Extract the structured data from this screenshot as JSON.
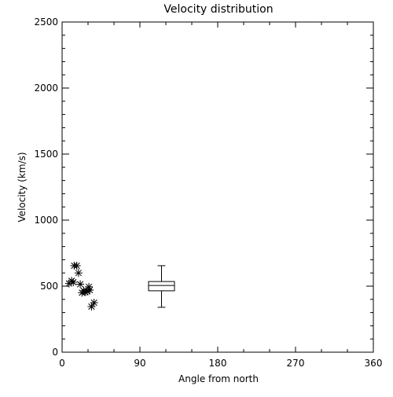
{
  "chart_data": {
    "type": "scatter",
    "title": "Velocity distribution",
    "xlabel": "Angle from north",
    "ylabel": "Velocity (km/s)",
    "xlim": [
      0,
      360
    ],
    "ylim": [
      0,
      2500
    ],
    "x_ticks": [
      0,
      90,
      180,
      270,
      360
    ],
    "y_ticks": [
      0,
      500,
      1000,
      1500,
      2000,
      2500
    ],
    "x_tick_labels": [
      "0",
      "90",
      "180",
      "270",
      "360"
    ],
    "y_tick_labels": [
      "0",
      "500",
      "1000",
      "1500",
      "2000",
      "2500"
    ],
    "grid": false,
    "marker": "asterisk",
    "points": [
      {
        "x": 8,
        "y": 520
      },
      {
        "x": 11,
        "y": 540
      },
      {
        "x": 13,
        "y": 530
      },
      {
        "x": 14,
        "y": 655
      },
      {
        "x": 17,
        "y": 655
      },
      {
        "x": 19,
        "y": 600
      },
      {
        "x": 21,
        "y": 515
      },
      {
        "x": 23,
        "y": 450
      },
      {
        "x": 25,
        "y": 465
      },
      {
        "x": 27,
        "y": 455
      },
      {
        "x": 29,
        "y": 460
      },
      {
        "x": 31,
        "y": 495
      },
      {
        "x": 32,
        "y": 470
      },
      {
        "x": 34,
        "y": 345
      },
      {
        "x": 37,
        "y": 375
      }
    ],
    "boxplot": {
      "x": 115,
      "half_width_x": 15,
      "min": 340,
      "q1": 465,
      "median": 505,
      "q3": 535,
      "max": 655
    }
  }
}
